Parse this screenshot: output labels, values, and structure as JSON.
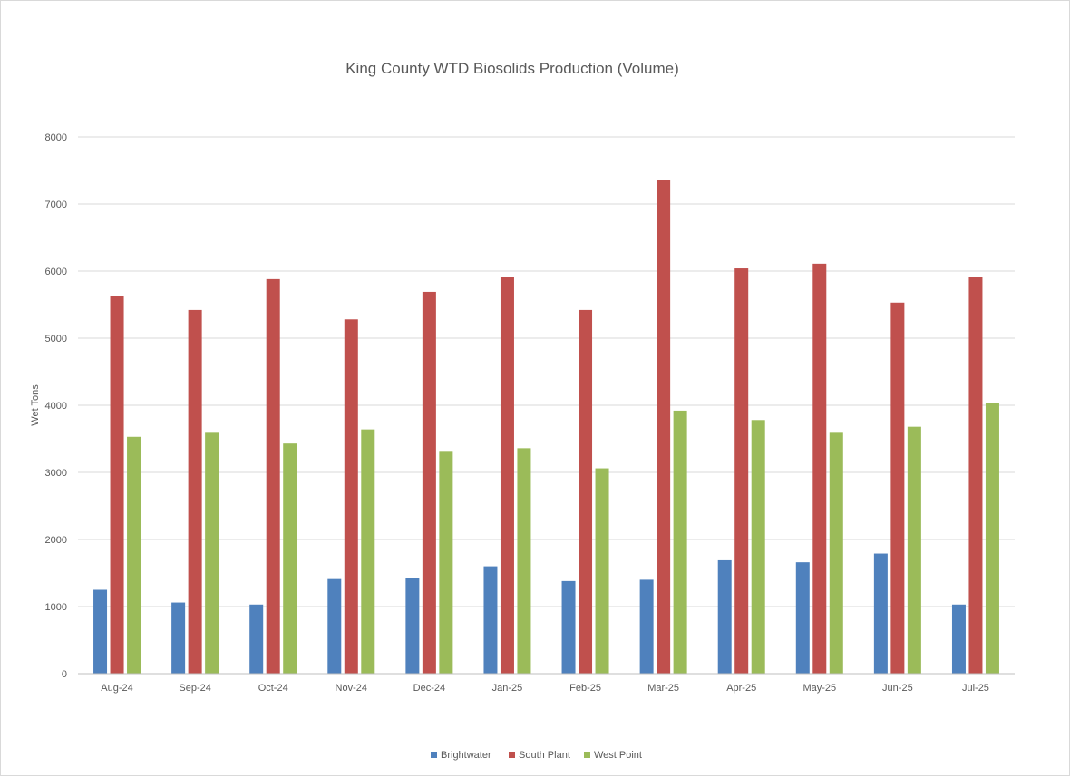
{
  "chart_data": {
    "type": "bar",
    "title": "King County WTD Biosolids Production (Volume)",
    "xlabel": "",
    "ylabel": "Wet Tons",
    "ylim": [
      0,
      8000
    ],
    "yticks": [
      0,
      1000,
      2000,
      3000,
      4000,
      5000,
      6000,
      7000,
      8000
    ],
    "grid": true,
    "legend_position": "bottom",
    "categories": [
      "Aug-24",
      "Sep-24",
      "Oct-24",
      "Nov-24",
      "Dec-24",
      "Jan-25",
      "Feb-25",
      "Mar-25",
      "Apr-25",
      "May-25",
      "Jun-25",
      "Jul-25"
    ],
    "series": [
      {
        "name": "Brightwater",
        "color": "#4f81bd",
        "values": [
          1250,
          1060,
          1030,
          1410,
          1420,
          1600,
          1380,
          1400,
          1690,
          1660,
          1790,
          1030
        ]
      },
      {
        "name": "South Plant",
        "color": "#c0504d",
        "values": [
          5630,
          5420,
          5880,
          5280,
          5690,
          5910,
          5420,
          7360,
          6040,
          6110,
          5530,
          5910
        ]
      },
      {
        "name": "West Point",
        "color": "#9bbb59",
        "values": [
          3530,
          3590,
          3430,
          3640,
          3320,
          3360,
          3060,
          3920,
          3780,
          3590,
          3680,
          4030
        ]
      }
    ]
  }
}
